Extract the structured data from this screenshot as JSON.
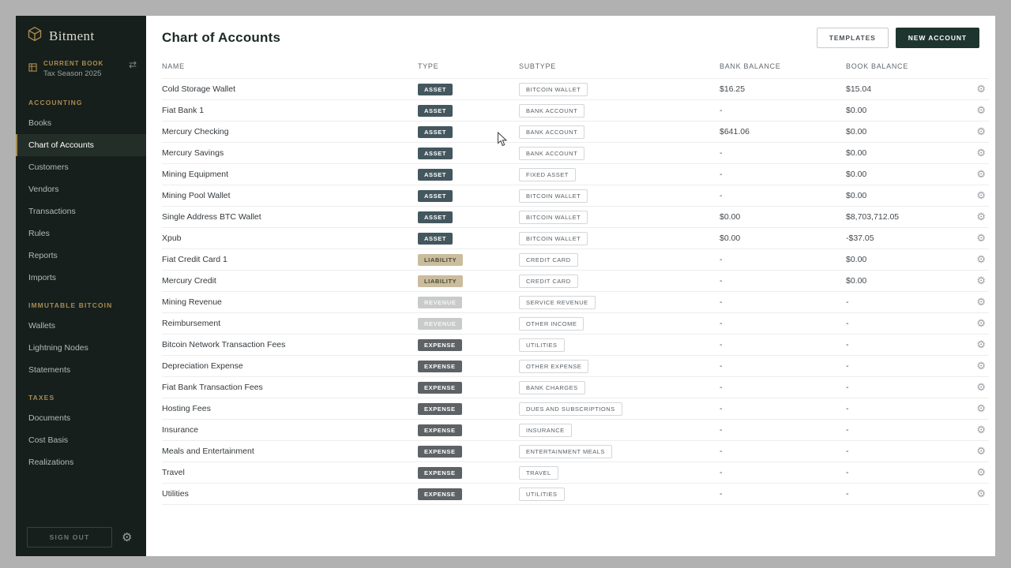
{
  "app": {
    "brand": "Bitment",
    "current_book_label": "CURRENT BOOK",
    "current_book_value": "Tax Season 2025",
    "sign_out_label": "SIGN OUT"
  },
  "icons": {
    "gear": "⚙",
    "swap": "⇄"
  },
  "colors": {
    "sidebar_bg": "#161f1b",
    "accent_gold": "#a88b52",
    "primary_button": "#1e352f",
    "badge_asset": "#44575e",
    "badge_liability": "#c9bd9e",
    "badge_revenue": "#c9cbca",
    "badge_expense": "#5d6266"
  },
  "sidebar": {
    "sections": [
      {
        "title": "ACCOUNTING",
        "active": "Chart of Accounts",
        "items": [
          "Books",
          "Chart of Accounts",
          "Customers",
          "Vendors",
          "Transactions",
          "Rules",
          "Reports",
          "Imports"
        ]
      },
      {
        "title": "IMMUTABLE BITCOIN",
        "items": [
          "Wallets",
          "Lightning Nodes",
          "Statements"
        ]
      },
      {
        "title": "TAXES",
        "items": [
          "Documents",
          "Cost Basis",
          "Realizations"
        ]
      }
    ]
  },
  "header": {
    "title": "Chart of Accounts",
    "templates_button": "TEMPLATES",
    "new_account_button": "NEW ACCOUNT"
  },
  "table": {
    "columns": [
      "NAME",
      "TYPE",
      "SUBTYPE",
      "BANK BALANCE",
      "BOOK BALANCE"
    ],
    "rows": [
      {
        "name": "Cold Storage Wallet",
        "type": "ASSET",
        "subtype": "BITCOIN WALLET",
        "bank_balance": "$16.25",
        "book_balance": "$15.04"
      },
      {
        "name": "Fiat Bank 1",
        "type": "ASSET",
        "subtype": "BANK ACCOUNT",
        "bank_balance": "-",
        "book_balance": "$0.00"
      },
      {
        "name": "Mercury Checking",
        "type": "ASSET",
        "subtype": "BANK ACCOUNT",
        "bank_balance": "$641.06",
        "book_balance": "$0.00"
      },
      {
        "name": "Mercury Savings",
        "type": "ASSET",
        "subtype": "BANK ACCOUNT",
        "bank_balance": "-",
        "book_balance": "$0.00"
      },
      {
        "name": "Mining Equipment",
        "type": "ASSET",
        "subtype": "FIXED ASSET",
        "bank_balance": "-",
        "book_balance": "$0.00"
      },
      {
        "name": "Mining Pool Wallet",
        "type": "ASSET",
        "subtype": "BITCOIN WALLET",
        "bank_balance": "-",
        "book_balance": "$0.00"
      },
      {
        "name": "Single Address BTC Wallet",
        "type": "ASSET",
        "subtype": "BITCOIN WALLET",
        "bank_balance": "$0.00",
        "book_balance": "$8,703,712.05"
      },
      {
        "name": "Xpub",
        "type": "ASSET",
        "subtype": "BITCOIN WALLET",
        "bank_balance": "$0.00",
        "book_balance": "-$37.05"
      },
      {
        "name": "Fiat Credit Card 1",
        "type": "LIABILITY",
        "subtype": "CREDIT CARD",
        "bank_balance": "-",
        "book_balance": "$0.00"
      },
      {
        "name": "Mercury Credit",
        "type": "LIABILITY",
        "subtype": "CREDIT CARD",
        "bank_balance": "-",
        "book_balance": "$0.00"
      },
      {
        "name": "Mining Revenue",
        "type": "REVENUE",
        "subtype": "SERVICE REVENUE",
        "bank_balance": "-",
        "book_balance": "-"
      },
      {
        "name": "Reimbursement",
        "type": "REVENUE",
        "subtype": "OTHER INCOME",
        "bank_balance": "-",
        "book_balance": "-"
      },
      {
        "name": "Bitcoin Network Transaction Fees",
        "type": "EXPENSE",
        "subtype": "UTILITIES",
        "bank_balance": "-",
        "book_balance": "-"
      },
      {
        "name": "Depreciation Expense",
        "type": "EXPENSE",
        "subtype": "OTHER EXPENSE",
        "bank_balance": "-",
        "book_balance": "-"
      },
      {
        "name": "Fiat Bank Transaction Fees",
        "type": "EXPENSE",
        "subtype": "BANK CHARGES",
        "bank_balance": "-",
        "book_balance": "-"
      },
      {
        "name": "Hosting Fees",
        "type": "EXPENSE",
        "subtype": "DUES AND SUBSCRIPTIONS",
        "bank_balance": "-",
        "book_balance": "-"
      },
      {
        "name": "Insurance",
        "type": "EXPENSE",
        "subtype": "INSURANCE",
        "bank_balance": "-",
        "book_balance": "-"
      },
      {
        "name": "Meals and Entertainment",
        "type": "EXPENSE",
        "subtype": "ENTERTAINMENT MEALS",
        "bank_balance": "-",
        "book_balance": "-"
      },
      {
        "name": "Travel",
        "type": "EXPENSE",
        "subtype": "TRAVEL",
        "bank_balance": "-",
        "book_balance": "-"
      },
      {
        "name": "Utilities",
        "type": "EXPENSE",
        "subtype": "UTILITIES",
        "bank_balance": "-",
        "book_balance": "-"
      }
    ]
  }
}
